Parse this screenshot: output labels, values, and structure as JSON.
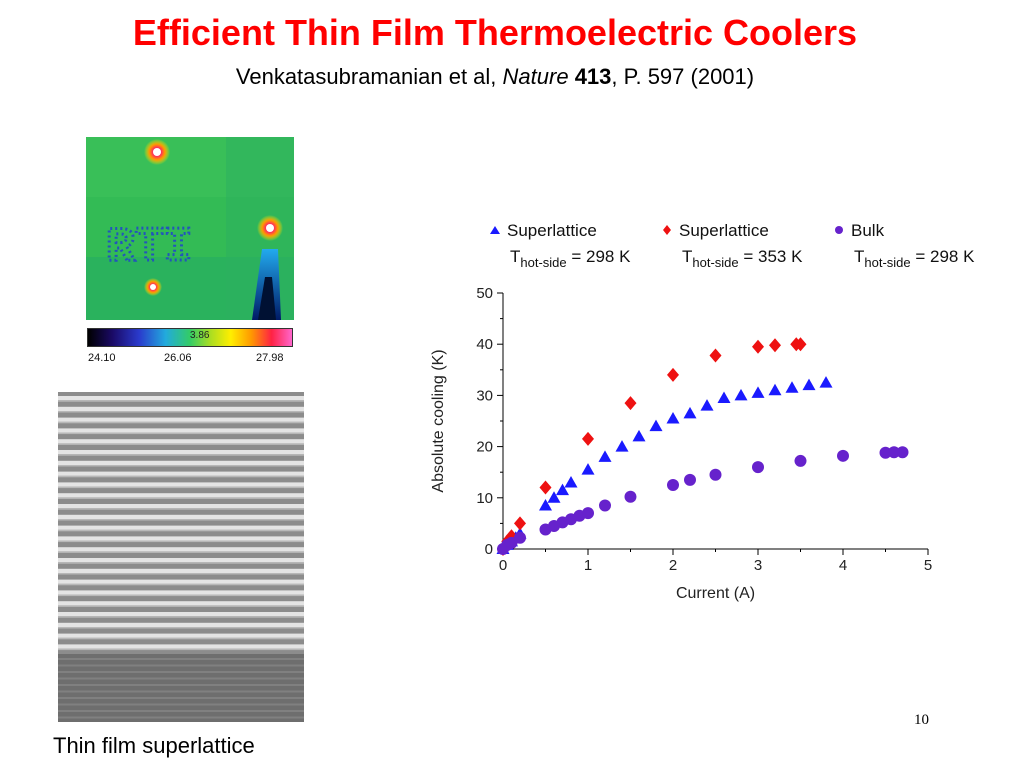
{
  "slide": {
    "title": "Efficient Thin Film Thermoelectric Coolers",
    "citation": {
      "authors": "Venkatasubramanian et al, ",
      "journal": "Nature",
      "volume": "413",
      "pages": ", P. 597 (2001)"
    },
    "thermal_image": {
      "text": "RTI",
      "colorbar_min": "24.10",
      "colorbar_mid": "26.06",
      "colorbar_max": "27.98",
      "colorbar_marker": "3.86"
    },
    "caption": "Thin film superlattice",
    "page_number": "10"
  },
  "chart_data": {
    "type": "scatter",
    "xlabel": "Current (A)",
    "ylabel": "Absolute cooling (K)",
    "xlim": [
      0,
      5
    ],
    "ylim": [
      0,
      50
    ],
    "xticks": [
      "0",
      "1",
      "2",
      "3",
      "4",
      "5"
    ],
    "yticks": [
      "0",
      "10",
      "20",
      "30",
      "40",
      "50"
    ],
    "legend_position": "top",
    "series": [
      {
        "name": "Superlattice",
        "condition_prefix": "T",
        "condition_subscript": "hot-side",
        "condition_value": " = 298 K",
        "marker": "triangle",
        "color": "#1a1aff",
        "x": [
          0.0,
          0.05,
          0.1,
          0.15,
          0.2,
          0.5,
          0.6,
          0.7,
          0.8,
          1.0,
          1.2,
          1.4,
          1.6,
          1.8,
          2.0,
          2.2,
          2.4,
          2.6,
          2.8,
          3.0,
          3.2,
          3.4,
          3.6,
          3.8
        ],
        "y": [
          0.0,
          0.8,
          1.5,
          2.2,
          3.0,
          8.5,
          10.0,
          11.5,
          13.0,
          15.5,
          18.0,
          20.0,
          22.0,
          24.0,
          25.5,
          26.5,
          28.0,
          29.5,
          30.0,
          30.5,
          31.0,
          31.5,
          32.0,
          32.5
        ]
      },
      {
        "name": "Superlattice",
        "condition_prefix": "T",
        "condition_subscript": "hot-side",
        "condition_value": " = 353 K",
        "marker": "diamond",
        "color": "#ee1111",
        "x": [
          0.0,
          0.05,
          0.1,
          0.2,
          0.5,
          1.0,
          1.5,
          2.0,
          2.5,
          3.0,
          3.2,
          3.45,
          3.5
        ],
        "y": [
          0.0,
          1.5,
          2.5,
          5.0,
          12.0,
          21.5,
          28.5,
          34.0,
          37.8,
          39.5,
          39.8,
          40.0,
          40.0
        ]
      },
      {
        "name": "Bulk",
        "condition_prefix": "T",
        "condition_subscript": "hot-side",
        "condition_value": " = 298 K",
        "marker": "circle",
        "color": "#6622cc",
        "x": [
          0.0,
          0.05,
          0.1,
          0.2,
          0.5,
          0.6,
          0.7,
          0.8,
          0.9,
          1.0,
          1.2,
          1.5,
          2.0,
          2.2,
          2.5,
          3.0,
          3.5,
          4.0,
          4.5,
          4.6,
          4.7
        ],
        "y": [
          0.0,
          0.8,
          1.2,
          2.2,
          3.8,
          4.5,
          5.2,
          5.8,
          6.5,
          7.0,
          8.5,
          10.2,
          12.5,
          13.5,
          14.5,
          16.0,
          17.2,
          18.2,
          18.8,
          18.9,
          18.9
        ]
      }
    ]
  }
}
